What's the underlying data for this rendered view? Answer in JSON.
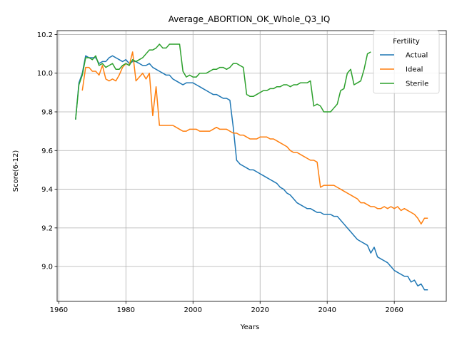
{
  "chart_data": {
    "type": "line",
    "title": "Average_ABORTION_OK_Whole_Q3_IQ",
    "xlabel": "Years",
    "ylabel": "Score(6-12)",
    "xlim": [
      1959.5,
      2075.5
    ],
    "ylim": [
      8.82,
      10.22
    ],
    "xticks": [
      1960,
      1980,
      2000,
      2020,
      2040,
      2060
    ],
    "yticks": [
      9.0,
      9.2,
      9.4,
      9.6,
      9.8,
      10.0,
      10.2
    ],
    "grid": true,
    "legend": {
      "title": "Fertility",
      "placement": "top-right"
    },
    "series": [
      {
        "name": "Actual",
        "color": "#1f77b4",
        "points": [
          [
            1965,
            9.76
          ],
          [
            1966,
            9.95
          ],
          [
            1967,
            10.0
          ],
          [
            1968,
            10.09
          ],
          [
            1969,
            10.08
          ],
          [
            1970,
            10.08
          ],
          [
            1971,
            10.08
          ],
          [
            1972,
            10.05
          ],
          [
            1973,
            10.06
          ],
          [
            1974,
            10.06
          ],
          [
            1975,
            10.08
          ],
          [
            1976,
            10.09
          ],
          [
            1977,
            10.08
          ],
          [
            1978,
            10.07
          ],
          [
            1979,
            10.06
          ],
          [
            1980,
            10.07
          ],
          [
            1981,
            10.05
          ],
          [
            1982,
            10.06
          ],
          [
            1983,
            10.06
          ],
          [
            1984,
            10.05
          ],
          [
            1985,
            10.04
          ],
          [
            1986,
            10.04
          ],
          [
            1987,
            10.05
          ],
          [
            1988,
            10.03
          ],
          [
            1989,
            10.02
          ],
          [
            1990,
            10.01
          ],
          [
            1991,
            10.0
          ],
          [
            1992,
            9.99
          ],
          [
            1993,
            9.99
          ],
          [
            1994,
            9.97
          ],
          [
            1995,
            9.96
          ],
          [
            1996,
            9.95
          ],
          [
            1997,
            9.94
          ],
          [
            1998,
            9.95
          ],
          [
            1999,
            9.95
          ],
          [
            2000,
            9.95
          ],
          [
            2001,
            9.94
          ],
          [
            2002,
            9.93
          ],
          [
            2003,
            9.92
          ],
          [
            2004,
            9.91
          ],
          [
            2005,
            9.9
          ],
          [
            2006,
            9.89
          ],
          [
            2007,
            9.89
          ],
          [
            2008,
            9.88
          ],
          [
            2009,
            9.87
          ],
          [
            2010,
            9.87
          ],
          [
            2011,
            9.86
          ],
          [
            2012,
            9.72
          ],
          [
            2013,
            9.55
          ],
          [
            2014,
            9.53
          ],
          [
            2015,
            9.52
          ],
          [
            2016,
            9.51
          ],
          [
            2017,
            9.5
          ],
          [
            2018,
            9.5
          ],
          [
            2019,
            9.49
          ],
          [
            2020,
            9.48
          ],
          [
            2021,
            9.47
          ],
          [
            2022,
            9.46
          ],
          [
            2023,
            9.45
          ],
          [
            2024,
            9.44
          ],
          [
            2025,
            9.43
          ],
          [
            2026,
            9.41
          ],
          [
            2027,
            9.4
          ],
          [
            2028,
            9.38
          ],
          [
            2029,
            9.37
          ],
          [
            2030,
            9.35
          ],
          [
            2031,
            9.33
          ],
          [
            2032,
            9.32
          ],
          [
            2033,
            9.31
          ],
          [
            2034,
            9.3
          ],
          [
            2035,
            9.3
          ],
          [
            2036,
            9.29
          ],
          [
            2037,
            9.28
          ],
          [
            2038,
            9.28
          ],
          [
            2039,
            9.27
          ],
          [
            2040,
            9.27
          ],
          [
            2041,
            9.27
          ],
          [
            2042,
            9.26
          ],
          [
            2043,
            9.26
          ],
          [
            2044,
            9.24
          ],
          [
            2045,
            9.22
          ],
          [
            2046,
            9.2
          ],
          [
            2047,
            9.18
          ],
          [
            2048,
            9.16
          ],
          [
            2049,
            9.14
          ],
          [
            2050,
            9.13
          ],
          [
            2051,
            9.12
          ],
          [
            2052,
            9.11
          ],
          [
            2053,
            9.07
          ],
          [
            2054,
            9.1
          ],
          [
            2055,
            9.05
          ],
          [
            2056,
            9.04
          ],
          [
            2057,
            9.03
          ],
          [
            2058,
            9.02
          ],
          [
            2059,
            9.0
          ],
          [
            2060,
            8.98
          ],
          [
            2061,
            8.97
          ],
          [
            2062,
            8.96
          ],
          [
            2063,
            8.95
          ],
          [
            2064,
            8.95
          ],
          [
            2065,
            8.92
          ],
          [
            2066,
            8.93
          ],
          [
            2067,
            8.9
          ],
          [
            2068,
            8.91
          ],
          [
            2069,
            8.88
          ],
          [
            2070,
            8.88
          ]
        ]
      },
      {
        "name": "Ideal",
        "color": "#ff7f0e",
        "points": [
          [
            1967,
            9.91
          ],
          [
            1968,
            10.03
          ],
          [
            1969,
            10.03
          ],
          [
            1970,
            10.01
          ],
          [
            1971,
            10.01
          ],
          [
            1972,
            9.99
          ],
          [
            1973,
            10.04
          ],
          [
            1974,
            9.97
          ],
          [
            1975,
            9.96
          ],
          [
            1976,
            9.97
          ],
          [
            1977,
            9.96
          ],
          [
            1978,
            9.99
          ],
          [
            1979,
            10.03
          ],
          [
            1980,
            10.05
          ],
          [
            1981,
            10.04
          ],
          [
            1982,
            10.11
          ],
          [
            1983,
            9.96
          ],
          [
            1984,
            9.98
          ],
          [
            1985,
            10.0
          ],
          [
            1986,
            9.97
          ],
          [
            1987,
            10.0
          ],
          [
            1988,
            9.78
          ],
          [
            1989,
            9.93
          ],
          [
            1990,
            9.73
          ],
          [
            1991,
            9.73
          ],
          [
            1992,
            9.73
          ],
          [
            1993,
            9.73
          ],
          [
            1994,
            9.73
          ],
          [
            1995,
            9.72
          ],
          [
            1996,
            9.71
          ],
          [
            1997,
            9.7
          ],
          [
            1998,
            9.7
          ],
          [
            1999,
            9.71
          ],
          [
            2000,
            9.71
          ],
          [
            2001,
            9.71
          ],
          [
            2002,
            9.7
          ],
          [
            2003,
            9.7
          ],
          [
            2004,
            9.7
          ],
          [
            2005,
            9.7
          ],
          [
            2006,
            9.71
          ],
          [
            2007,
            9.72
          ],
          [
            2008,
            9.71
          ],
          [
            2009,
            9.71
          ],
          [
            2010,
            9.71
          ],
          [
            2011,
            9.7
          ],
          [
            2012,
            9.69
          ],
          [
            2013,
            9.69
          ],
          [
            2014,
            9.68
          ],
          [
            2015,
            9.68
          ],
          [
            2016,
            9.67
          ],
          [
            2017,
            9.66
          ],
          [
            2018,
            9.66
          ],
          [
            2019,
            9.66
          ],
          [
            2020,
            9.67
          ],
          [
            2021,
            9.67
          ],
          [
            2022,
            9.67
          ],
          [
            2023,
            9.66
          ],
          [
            2024,
            9.66
          ],
          [
            2025,
            9.65
          ],
          [
            2026,
            9.64
          ],
          [
            2027,
            9.63
          ],
          [
            2028,
            9.62
          ],
          [
            2029,
            9.6
          ],
          [
            2030,
            9.59
          ],
          [
            2031,
            9.59
          ],
          [
            2032,
            9.58
          ],
          [
            2033,
            9.57
          ],
          [
            2034,
            9.56
          ],
          [
            2035,
            9.55
          ],
          [
            2036,
            9.55
          ],
          [
            2037,
            9.54
          ],
          [
            2038,
            9.41
          ],
          [
            2039,
            9.42
          ],
          [
            2040,
            9.42
          ],
          [
            2041,
            9.42
          ],
          [
            2042,
            9.42
          ],
          [
            2043,
            9.41
          ],
          [
            2044,
            9.4
          ],
          [
            2045,
            9.39
          ],
          [
            2046,
            9.38
          ],
          [
            2047,
            9.37
          ],
          [
            2048,
            9.36
          ],
          [
            2049,
            9.35
          ],
          [
            2050,
            9.33
          ],
          [
            2051,
            9.33
          ],
          [
            2052,
            9.32
          ],
          [
            2053,
            9.31
          ],
          [
            2054,
            9.31
          ],
          [
            2055,
            9.3
          ],
          [
            2056,
            9.3
          ],
          [
            2057,
            9.31
          ],
          [
            2058,
            9.3
          ],
          [
            2059,
            9.31
          ],
          [
            2060,
            9.3
          ],
          [
            2061,
            9.31
          ],
          [
            2062,
            9.29
          ],
          [
            2063,
            9.3
          ],
          [
            2064,
            9.29
          ],
          [
            2065,
            9.28
          ],
          [
            2066,
            9.27
          ],
          [
            2067,
            9.25
          ],
          [
            2068,
            9.22
          ],
          [
            2069,
            9.25
          ],
          [
            2070,
            9.25
          ]
        ]
      },
      {
        "name": "Sterile",
        "color": "#2ca02c",
        "points": [
          [
            1965,
            9.76
          ],
          [
            1966,
            9.94
          ],
          [
            1967,
            9.99
          ],
          [
            1968,
            10.08
          ],
          [
            1969,
            10.08
          ],
          [
            1970,
            10.07
          ],
          [
            1971,
            10.09
          ],
          [
            1972,
            10.04
          ],
          [
            1973,
            10.05
          ],
          [
            1974,
            10.03
          ],
          [
            1975,
            10.04
          ],
          [
            1976,
            10.05
          ],
          [
            1977,
            10.02
          ],
          [
            1978,
            10.02
          ],
          [
            1979,
            10.04
          ],
          [
            1980,
            10.05
          ],
          [
            1981,
            10.04
          ],
          [
            1982,
            10.07
          ],
          [
            1983,
            10.06
          ],
          [
            1984,
            10.07
          ],
          [
            1985,
            10.08
          ],
          [
            1986,
            10.1
          ],
          [
            1987,
            10.12
          ],
          [
            1988,
            10.12
          ],
          [
            1989,
            10.13
          ],
          [
            1990,
            10.15
          ],
          [
            1991,
            10.13
          ],
          [
            1992,
            10.13
          ],
          [
            1993,
            10.15
          ],
          [
            1994,
            10.15
          ],
          [
            1995,
            10.15
          ],
          [
            1996,
            10.15
          ],
          [
            1997,
            10.01
          ],
          [
            1998,
            9.98
          ],
          [
            1999,
            9.99
          ],
          [
            2000,
            9.98
          ],
          [
            2001,
            9.98
          ],
          [
            2002,
            10.0
          ],
          [
            2003,
            10.0
          ],
          [
            2004,
            10.0
          ],
          [
            2005,
            10.01
          ],
          [
            2006,
            10.02
          ],
          [
            2007,
            10.02
          ],
          [
            2008,
            10.03
          ],
          [
            2009,
            10.03
          ],
          [
            2010,
            10.02
          ],
          [
            2011,
            10.03
          ],
          [
            2012,
            10.05
          ],
          [
            2013,
            10.05
          ],
          [
            2014,
            10.04
          ],
          [
            2015,
            10.03
          ],
          [
            2016,
            9.89
          ],
          [
            2017,
            9.88
          ],
          [
            2018,
            9.88
          ],
          [
            2019,
            9.89
          ],
          [
            2020,
            9.9
          ],
          [
            2021,
            9.91
          ],
          [
            2022,
            9.91
          ],
          [
            2023,
            9.92
          ],
          [
            2024,
            9.92
          ],
          [
            2025,
            9.93
          ],
          [
            2026,
            9.93
          ],
          [
            2027,
            9.94
          ],
          [
            2028,
            9.94
          ],
          [
            2029,
            9.93
          ],
          [
            2030,
            9.94
          ],
          [
            2031,
            9.94
          ],
          [
            2032,
            9.95
          ],
          [
            2033,
            9.95
          ],
          [
            2034,
            9.95
          ],
          [
            2035,
            9.96
          ],
          [
            2036,
            9.83
          ],
          [
            2037,
            9.84
          ],
          [
            2038,
            9.83
          ],
          [
            2039,
            9.8
          ],
          [
            2040,
            9.8
          ],
          [
            2041,
            9.8
          ],
          [
            2042,
            9.82
          ],
          [
            2043,
            9.84
          ],
          [
            2044,
            9.91
          ],
          [
            2045,
            9.92
          ],
          [
            2046,
            10.0
          ],
          [
            2047,
            10.02
          ],
          [
            2048,
            9.94
          ],
          [
            2049,
            9.95
          ],
          [
            2050,
            9.96
          ],
          [
            2051,
            10.02
          ],
          [
            2052,
            10.1
          ],
          [
            2053,
            10.11
          ]
        ]
      }
    ]
  }
}
